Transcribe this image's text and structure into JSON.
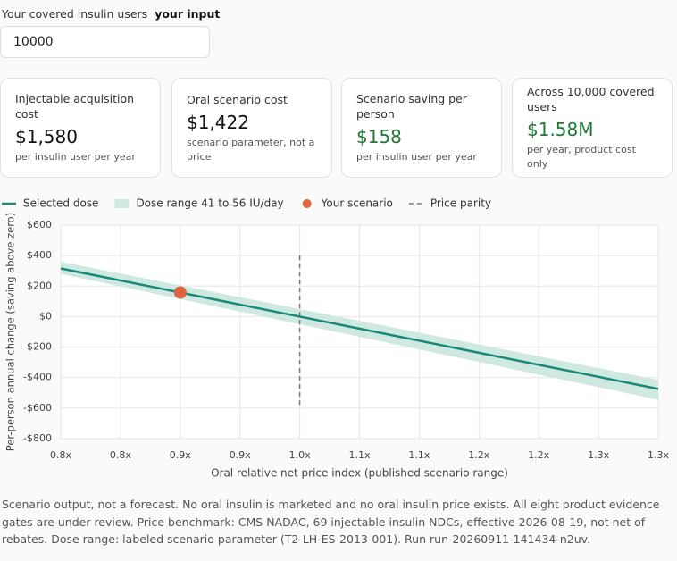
{
  "input": {
    "label": "Your covered insulin users",
    "hint": "your input",
    "value": "10000"
  },
  "cards": [
    {
      "title": "Injectable acquisition cost",
      "value": "$1,580",
      "note": "per insulin user per year",
      "color": "#111111"
    },
    {
      "title": "Oral scenario cost",
      "value": "$1,422",
      "note": "scenario parameter, not a price",
      "color": "#111111"
    },
    {
      "title": "Scenario saving per person",
      "value": "$158",
      "note": "per insulin user per year",
      "color": "#1e7a34"
    },
    {
      "title": "Across 10,000 covered users",
      "value": "$1.58M",
      "note": "per year, product cost only",
      "color": "#1e7a34"
    }
  ],
  "chart_data": {
    "type": "line",
    "xlabel": "Oral relative net price index (published scenario range)",
    "ylabel": "Per-person annual change (saving above zero)",
    "xlim": [
      0.8,
      1.3
    ],
    "xticks": [
      {
        "value": 0.8,
        "label": "0.8x"
      },
      {
        "value": 0.85,
        "label": "0.8x"
      },
      {
        "value": 0.9,
        "label": "0.9x"
      },
      {
        "value": 0.95,
        "label": "0.9x"
      },
      {
        "value": 1.0,
        "label": "1.0x"
      },
      {
        "value": 1.05,
        "label": "1.1x"
      },
      {
        "value": 1.1,
        "label": "1.1x"
      },
      {
        "value": 1.15,
        "label": "1.2x"
      },
      {
        "value": 1.2,
        "label": "1.2x"
      },
      {
        "value": 1.25,
        "label": "1.3x"
      },
      {
        "value": 1.3,
        "label": "1.3x"
      }
    ],
    "ylim": [
      -800,
      600
    ],
    "yticks": [
      {
        "value": -800,
        "label": "-$800"
      },
      {
        "value": -600,
        "label": "-$600"
      },
      {
        "value": -400,
        "label": "-$400"
      },
      {
        "value": -200,
        "label": "-$200"
      },
      {
        "value": 0,
        "label": "$0"
      },
      {
        "value": 200,
        "label": "$200"
      },
      {
        "value": 400,
        "label": "$400"
      },
      {
        "value": 600,
        "label": "$600"
      }
    ],
    "grid": true,
    "series": [
      {
        "name": "Selected dose",
        "kind": "line",
        "color": "#1a8a78",
        "x": [
          0.8,
          1.3
        ],
        "values": [
          316,
          -474
        ]
      },
      {
        "name": "Dose range 41 to 56 IU/day",
        "kind": "band",
        "color": "#cfe9e1",
        "x": [
          0.8,
          1.3
        ],
        "lower": [
          280,
          -545
        ],
        "upper": [
          360,
          -415
        ]
      },
      {
        "name": "Your scenario",
        "kind": "point",
        "color": "#e0643f",
        "x": [
          0.9
        ],
        "values": [
          158
        ]
      },
      {
        "name": "Price parity",
        "kind": "dashed",
        "color": "#777777",
        "x": [
          1.0,
          1.0
        ],
        "values": [
          400,
          -600
        ]
      }
    ]
  },
  "footer": "Scenario output, not a forecast. No oral insulin is marketed and no oral insulin price exists. All eight product evidence gates are under review. Price benchmark: CMS NADAC, 69 injectable insulin NDCs, effective 2026-08-19, not net of rebates. Dose range: labeled scenario parameter (T2-LH-ES-2013-001). Run run-20260911-141434-n2uv."
}
